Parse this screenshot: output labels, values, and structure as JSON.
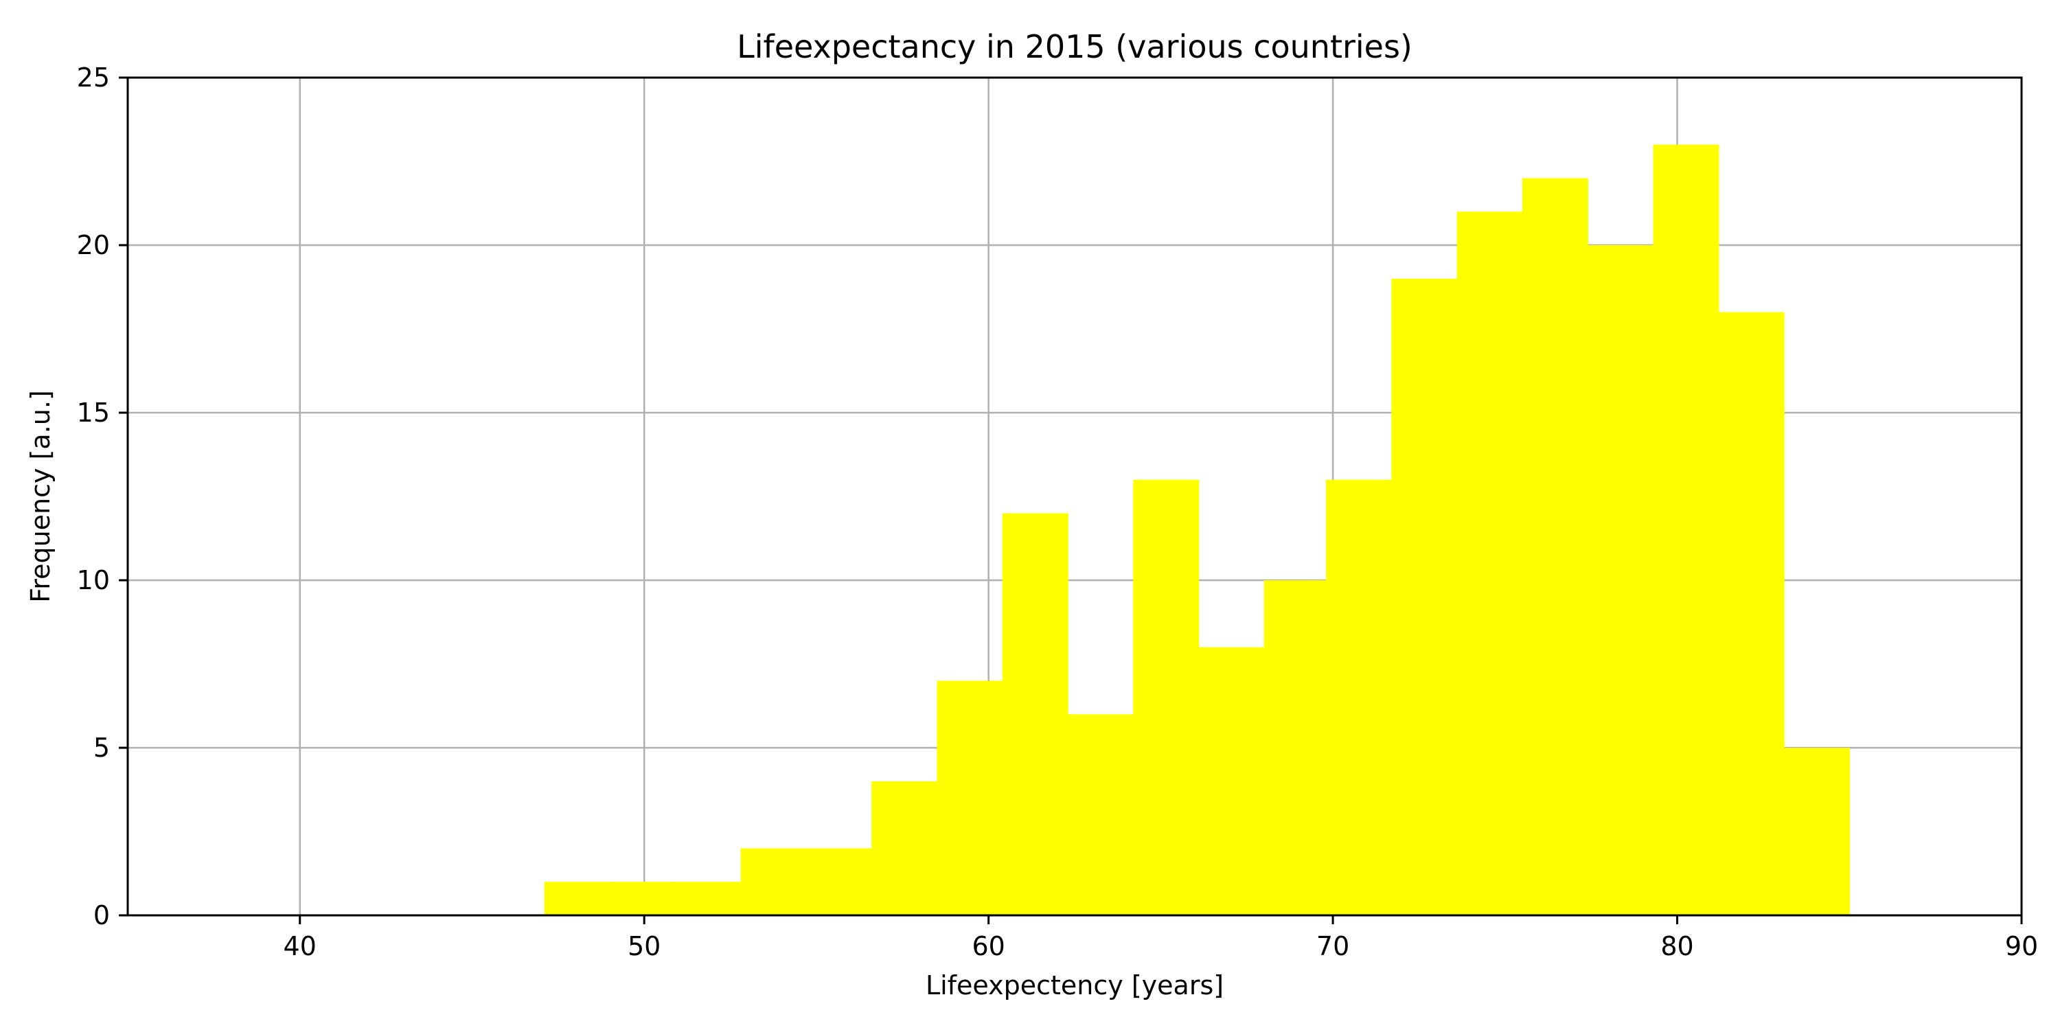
{
  "chart_data": {
    "type": "bar",
    "title": "Lifeexpectancy in 2015 (various countries)",
    "xlabel": "Lifeexpectency [years]",
    "ylabel": "Frequency [a.u.]",
    "xlim": [
      35,
      90
    ],
    "ylim": [
      0,
      25
    ],
    "xticks": [
      "40",
      "50",
      "60",
      "70",
      "80",
      "90"
    ],
    "yticks": [
      "0",
      "5",
      "10",
      "15",
      "20",
      "25"
    ],
    "grid": true,
    "bar_color": "#ffff00",
    "grid_color": "#b0b0b0",
    "bins": [
      {
        "start": 47.1,
        "end": 49.0,
        "count": 1
      },
      {
        "start": 49.0,
        "end": 50.9,
        "count": 1
      },
      {
        "start": 50.9,
        "end": 52.8,
        "count": 1
      },
      {
        "start": 52.8,
        "end": 54.7,
        "count": 2
      },
      {
        "start": 54.7,
        "end": 56.6,
        "count": 2
      },
      {
        "start": 56.6,
        "end": 58.5,
        "count": 4
      },
      {
        "start": 58.5,
        "end": 60.4,
        "count": 7
      },
      {
        "start": 60.4,
        "end": 62.3,
        "count": 12
      },
      {
        "start": 62.3,
        "end": 64.2,
        "count": 6
      },
      {
        "start": 64.2,
        "end": 66.1,
        "count": 13
      },
      {
        "start": 66.1,
        "end": 68.0,
        "count": 8
      },
      {
        "start": 68.0,
        "end": 69.8,
        "count": 10
      },
      {
        "start": 69.8,
        "end": 71.7,
        "count": 13
      },
      {
        "start": 71.7,
        "end": 73.6,
        "count": 19
      },
      {
        "start": 73.6,
        "end": 75.5,
        "count": 21
      },
      {
        "start": 75.5,
        "end": 77.4,
        "count": 22
      },
      {
        "start": 77.4,
        "end": 79.3,
        "count": 20
      },
      {
        "start": 79.3,
        "end": 81.2,
        "count": 23
      },
      {
        "start": 81.2,
        "end": 83.1,
        "count": 18
      },
      {
        "start": 83.1,
        "end": 85.0,
        "count": 5
      }
    ]
  }
}
